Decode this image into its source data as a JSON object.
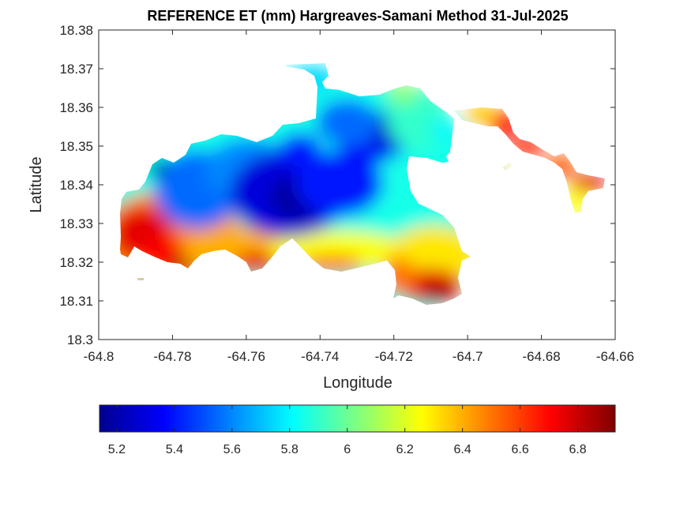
{
  "chart_data": {
    "type": "heatmap",
    "title": "REFERENCE ET (mm) Hargreaves-Samani Method  31-Jul-2025",
    "xlabel": "Longitude",
    "ylabel": "Latitude",
    "xlim": [
      -64.8,
      -64.66
    ],
    "ylim": [
      18.3,
      18.38
    ],
    "x_ticks": [
      "-64.8",
      "-64.78",
      "-64.76",
      "-64.74",
      "-64.72",
      "-64.7",
      "-64.68",
      "-64.66"
    ],
    "y_ticks": [
      "18.3",
      "18.31",
      "18.32",
      "18.33",
      "18.34",
      "18.35",
      "18.36",
      "18.37",
      "18.38"
    ],
    "colormap": "jet",
    "colorbar": {
      "range": [
        5.14,
        6.93
      ],
      "ticks": [
        "5.2",
        "5.4",
        "5.6",
        "5.8",
        "6",
        "6.2",
        "6.4",
        "6.6",
        "6.8"
      ],
      "placement": "bottom"
    },
    "lowest_region": {
      "lon": -64.745,
      "lat": 18.336,
      "value": 5.2
    },
    "highest_region": {
      "lon": -64.785,
      "lat": 18.323,
      "value": 6.8
    },
    "grid": false
  }
}
